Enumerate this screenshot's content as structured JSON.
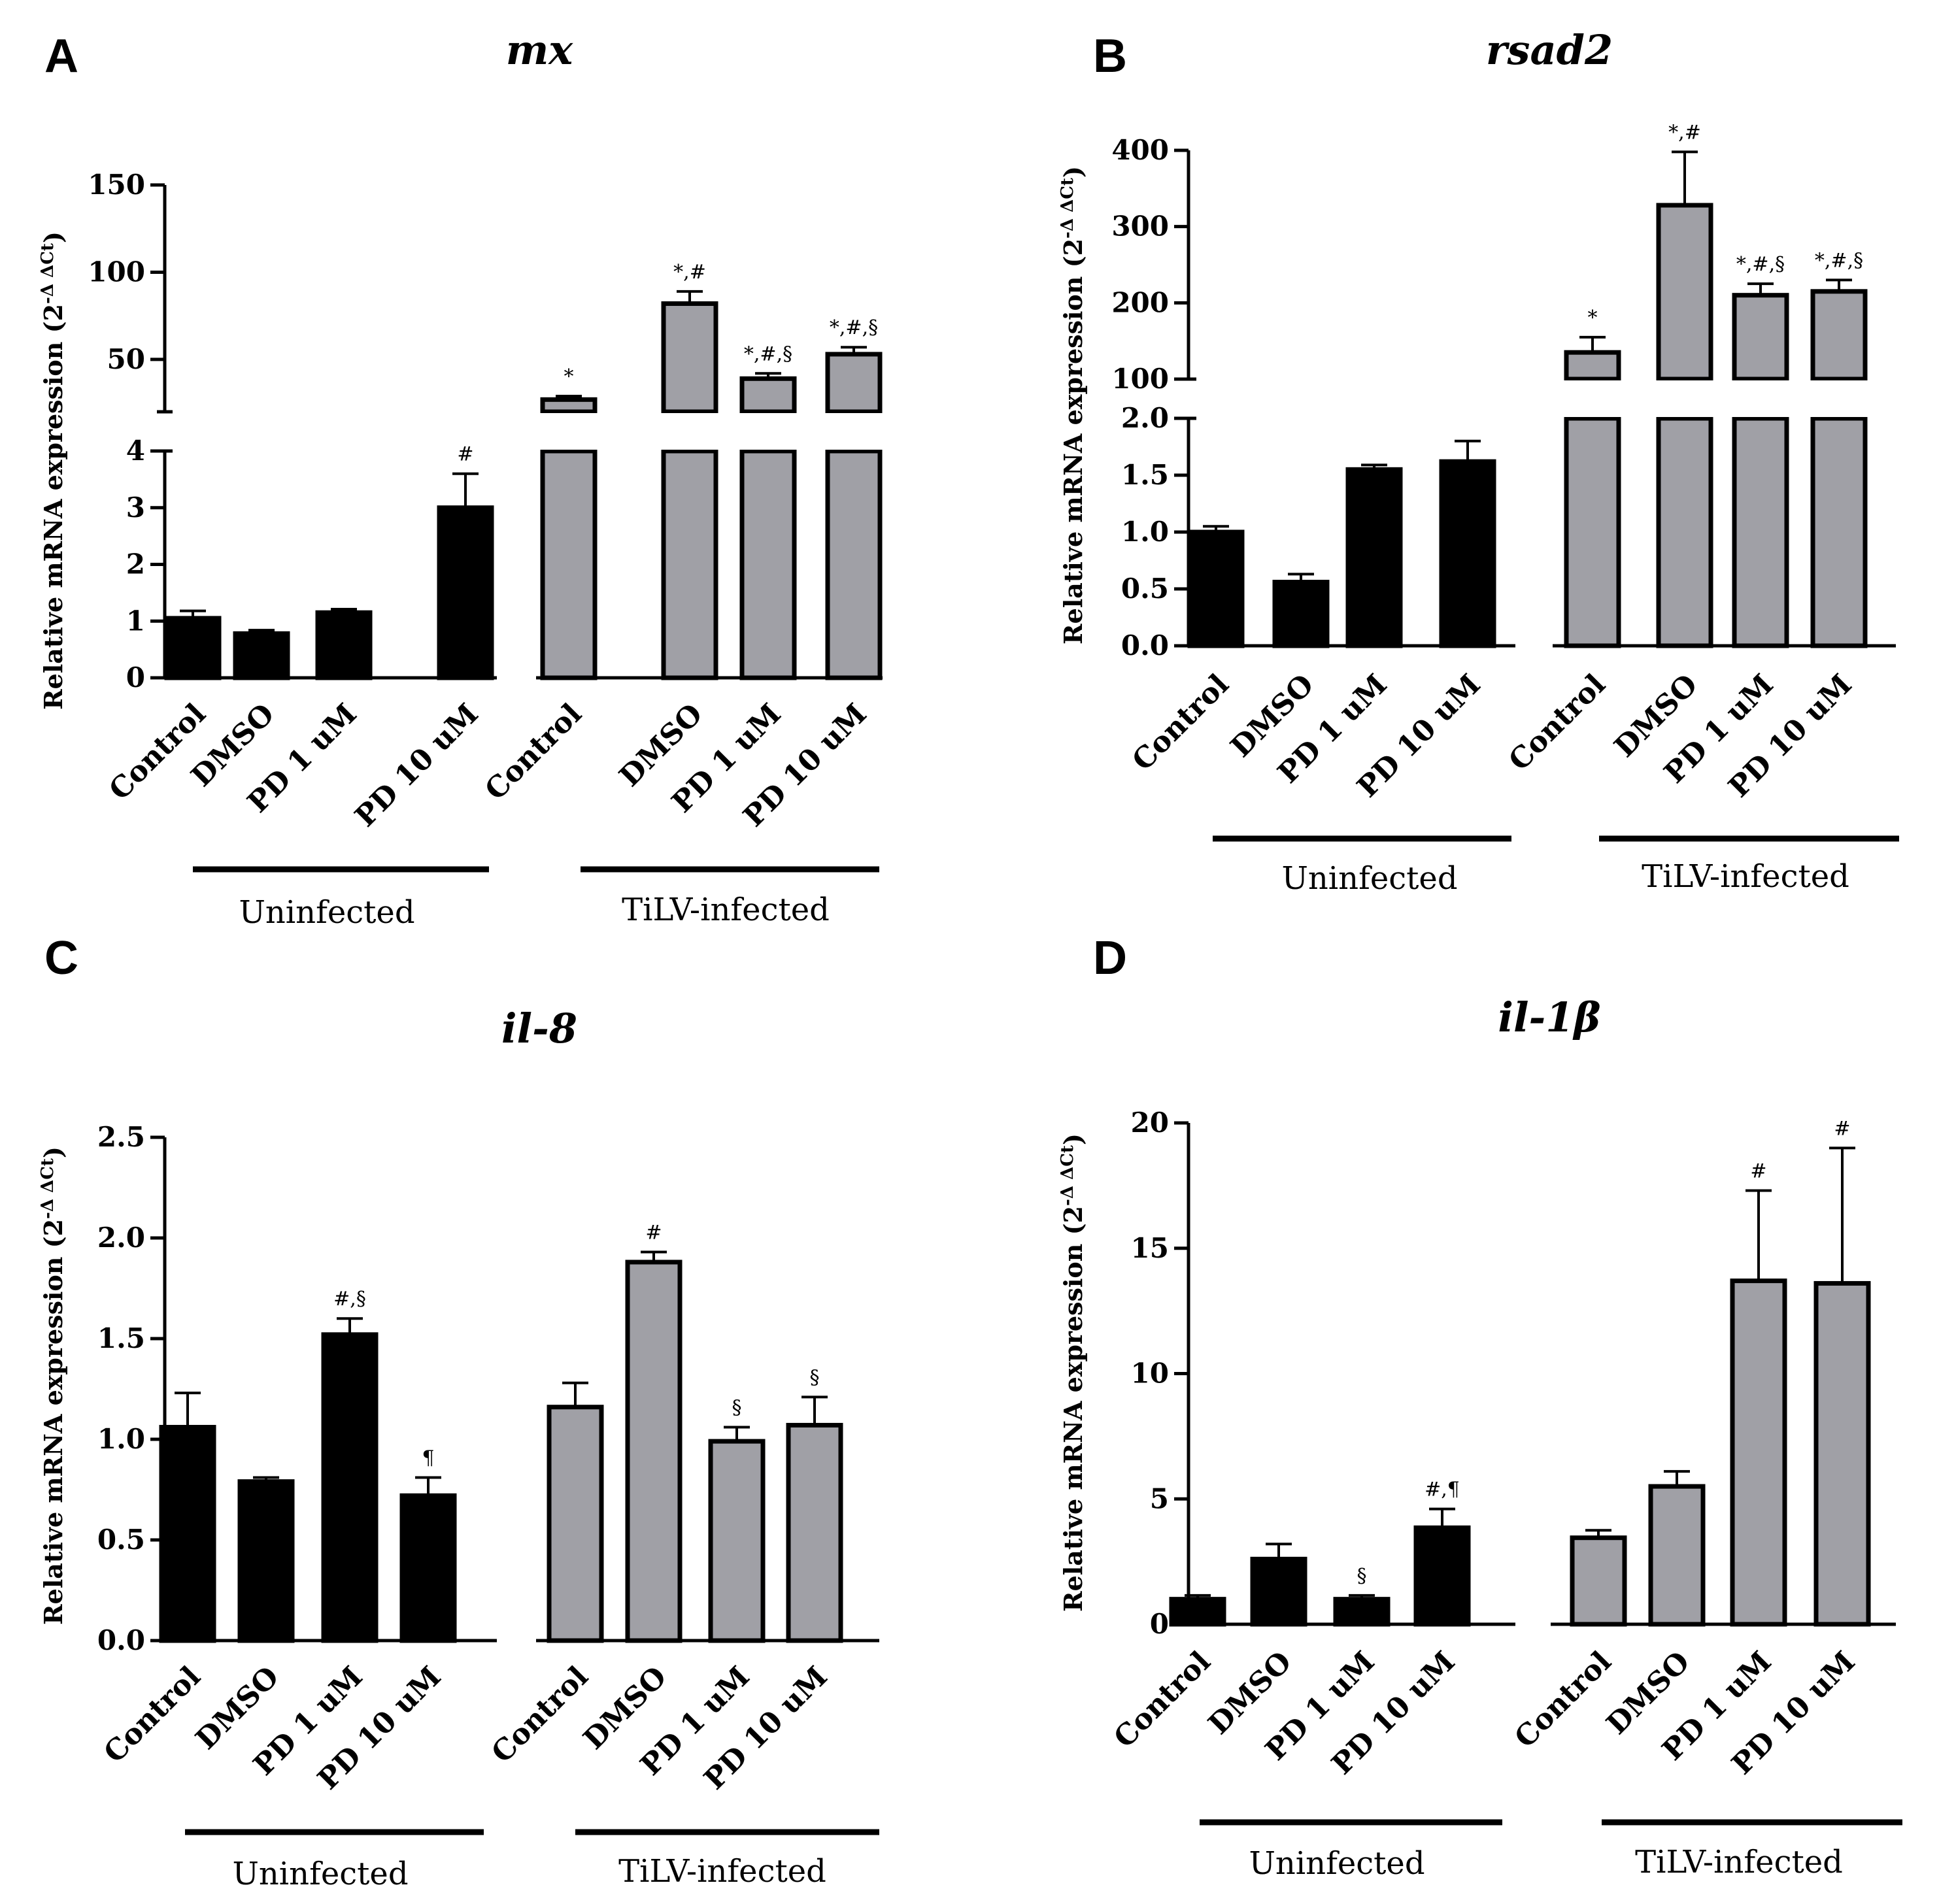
{
  "chart_data": [
    {
      "panel": "A",
      "type": "bar",
      "title": "mx",
      "ylabel": "Relative mRNA expression (2",
      "ylabel_sup": "-Δ ΔCt",
      "ylabel_end": ")",
      "categories": [
        "Control",
        "DMSO",
        "PD 1 uM",
        "PD 10 uM",
        "Control",
        "DMSO",
        "PD 1 uM",
        "PD 10 uM"
      ],
      "groups": [
        "Uninfected",
        "TiLV-infected"
      ],
      "series": [
        {
          "name": "Relative mRNA expression",
          "values": [
            1.05,
            0.78,
            1.15,
            3.0,
            27,
            82,
            39,
            53
          ],
          "errors": [
            0.13,
            0.06,
            0.06,
            0.6,
            2,
            7,
            3,
            4
          ]
        }
      ],
      "colors": [
        "#000000",
        "#000000",
        "#000000",
        "#000000",
        "#a0a0a6",
        "#a0a0a6",
        "#a0a0a6",
        "#a0a0a6"
      ],
      "annotations": [
        "",
        "",
        "",
        "#",
        "*",
        "*,#",
        "*,#,§",
        "*,#,§"
      ],
      "broken_axis": {
        "lower": [
          0,
          4
        ],
        "upper": [
          20,
          150
        ]
      },
      "yticks_lower": [
        "0",
        "1",
        "2",
        "3",
        "4"
      ],
      "yticks_upper": [
        "50",
        "100",
        "150"
      ]
    },
    {
      "panel": "B",
      "type": "bar",
      "title": "rsad2",
      "ylabel": "Relative mRNA expression (2",
      "ylabel_sup": "-Δ ΔCt",
      "ylabel_end": ")",
      "categories": [
        "Control",
        "DMSO",
        "PD 1 uM",
        "PD 10 uM",
        "Control",
        "DMSO",
        "PD 1 uM",
        "PD 10 uM"
      ],
      "groups": [
        "Uninfected",
        "TiLV-infected"
      ],
      "series": [
        {
          "name": "Relative mRNA expression",
          "values": [
            1.0,
            0.56,
            1.55,
            1.62,
            135,
            328,
            210,
            215
          ],
          "errors": [
            0.05,
            0.07,
            0.04,
            0.18,
            20,
            70,
            15,
            15
          ]
        }
      ],
      "colors": [
        "#000000",
        "#000000",
        "#000000",
        "#000000",
        "#a0a0a6",
        "#a0a0a6",
        "#a0a0a6",
        "#a0a0a6"
      ],
      "annotations": [
        "",
        "",
        "",
        "",
        "*",
        "*,#",
        "*,#,§",
        "*,#,§"
      ],
      "broken_axis": {
        "lower": [
          0,
          2.0
        ],
        "upper": [
          100,
          400
        ]
      },
      "yticks_lower": [
        "0.0",
        "0.5",
        "1.0",
        "1.5",
        "2.0"
      ],
      "yticks_upper": [
        "100",
        "200",
        "300",
        "400"
      ]
    },
    {
      "panel": "C",
      "type": "bar",
      "title": "il-8",
      "ylabel": "Relative mRNA expression (2",
      "ylabel_sup": "-Δ ΔCt",
      "ylabel_end": ")",
      "categories": [
        "Control",
        "DMSO",
        "PD 1 uM",
        "PD 10 uM",
        "Control",
        "DMSO",
        "PD 1 uM",
        "PD 10 uM"
      ],
      "groups": [
        "Uninfected",
        "TiLV-infected"
      ],
      "series": [
        {
          "name": "Relative mRNA expression",
          "values": [
            1.06,
            0.79,
            1.52,
            0.72,
            1.16,
            1.88,
            0.99,
            1.07
          ],
          "errors": [
            0.17,
            0.02,
            0.08,
            0.09,
            0.12,
            0.05,
            0.07,
            0.14
          ]
        }
      ],
      "colors": [
        "#000000",
        "#000000",
        "#000000",
        "#000000",
        "#a0a0a6",
        "#a0a0a6",
        "#a0a0a6",
        "#a0a0a6"
      ],
      "annotations": [
        "",
        "",
        "#,§",
        "¶",
        "",
        "#",
        "§",
        "§"
      ],
      "ylim": [
        0,
        2.5
      ],
      "yticks": [
        "0.0",
        "0.5",
        "1.0",
        "1.5",
        "2.0",
        "2.5"
      ]
    },
    {
      "panel": "D",
      "type": "bar",
      "title": "il-1β",
      "ylabel": "Relative mRNA expression (2",
      "ylabel_sup": "-Δ ΔCt",
      "ylabel_end": ")",
      "categories": [
        "Control",
        "DMSO",
        "PD 1 uM",
        "PD 10 uM",
        "Control",
        "DMSO",
        "PD 1 uM",
        "PD 10 uM"
      ],
      "groups": [
        "Uninfected",
        "TiLV-infected"
      ],
      "series": [
        {
          "name": "Relative mRNA expression",
          "values": [
            1.0,
            2.6,
            1.0,
            3.85,
            3.45,
            5.5,
            13.7,
            13.6
          ],
          "errors": [
            0.15,
            0.6,
            0.15,
            0.75,
            0.3,
            0.6,
            3.6,
            5.4
          ]
        }
      ],
      "colors": [
        "#000000",
        "#000000",
        "#000000",
        "#000000",
        "#a0a0a6",
        "#a0a0a6",
        "#a0a0a6",
        "#a0a0a6"
      ],
      "annotations": [
        "",
        "",
        "§",
        "#,¶",
        "",
        "",
        "#",
        "#"
      ],
      "ylim": [
        0,
        20
      ],
      "yticks": [
        "0",
        "5",
        "10",
        "15",
        "20"
      ]
    }
  ]
}
